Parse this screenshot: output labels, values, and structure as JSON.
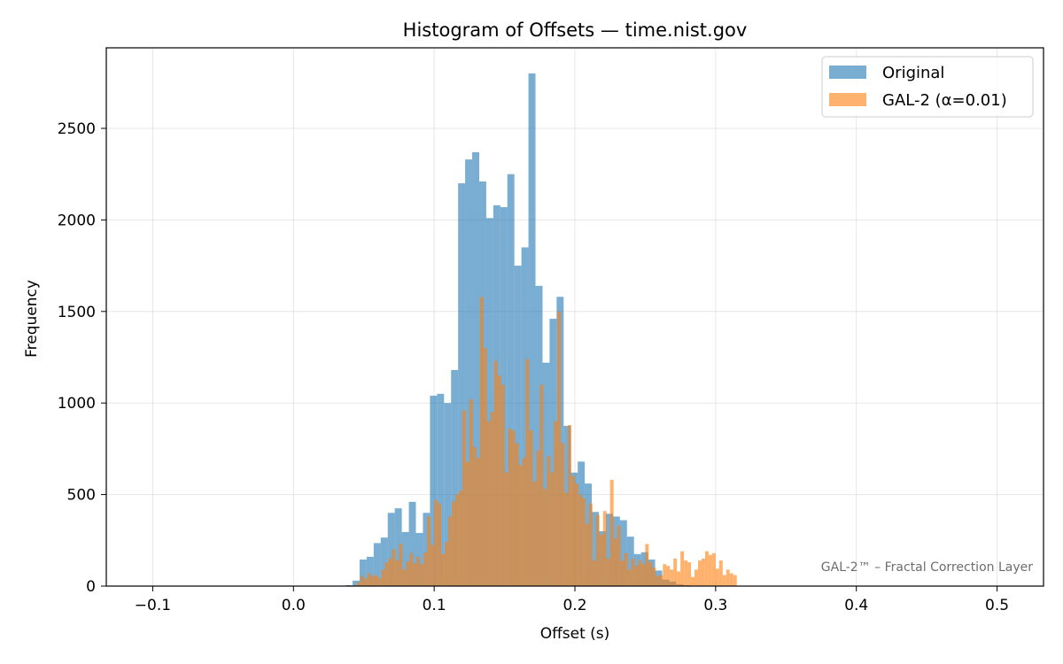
{
  "chart_data": {
    "type": "bar",
    "title": "Histogram of Offsets — time.nist.gov",
    "xlabel": "Offset (s)",
    "ylabel": "Frequency",
    "xlim": [
      -0.133,
      0.533
    ],
    "ylim": [
      0,
      2940
    ],
    "x_ticks": [
      -0.1,
      0.0,
      0.1,
      0.2,
      0.3,
      0.4,
      0.5
    ],
    "x_tick_labels": [
      "−0.1",
      "0.0",
      "0.1",
      "0.2",
      "0.3",
      "0.4",
      "0.5"
    ],
    "y_ticks": [
      0,
      500,
      1000,
      1500,
      2000,
      2500
    ],
    "y_tick_labels": [
      "0",
      "500",
      "1000",
      "1500",
      "2000",
      "2500"
    ],
    "grid": true,
    "legend_position": "top-right",
    "annotation": "GAL-2™ – Fractal Correction Layer",
    "series": [
      {
        "name": "Original",
        "color": "#1f77b4",
        "alpha": 0.6,
        "bin_width": 0.005,
        "bin_start": 0.037,
        "values": [
          5,
          30,
          145,
          160,
          235,
          265,
          400,
          425,
          295,
          460,
          290,
          400,
          1040,
          1050,
          1000,
          1180,
          2200,
          2330,
          2370,
          2210,
          2010,
          2080,
          2070,
          2250,
          1750,
          1850,
          2800,
          1640,
          1220,
          1460,
          1580,
          875,
          620,
          680,
          560,
          405,
          300,
          395,
          380,
          360,
          270,
          175,
          185,
          145,
          85,
          35,
          25,
          10,
          5
        ]
      },
      {
        "name": "GAL-2 (α=0.01)",
        "color": "#ff7f0e",
        "alpha": 0.6,
        "bin_width": 0.0025,
        "bin_start": 0.045,
        "values": [
          20,
          55,
          40,
          70,
          55,
          60,
          45,
          90,
          130,
          150,
          200,
          140,
          230,
          90,
          135,
          180,
          125,
          160,
          120,
          185,
          380,
          225,
          470,
          450,
          175,
          240,
          380,
          460,
          500,
          520,
          960,
          680,
          1020,
          760,
          700,
          1580,
          1300,
          900,
          950,
          1230,
          1150,
          1100,
          620,
          860,
          850,
          780,
          660,
          700,
          1240,
          850,
          570,
          740,
          1100,
          530,
          710,
          620,
          900,
          1500,
          780,
          510,
          880,
          600,
          560,
          500,
          480,
          340,
          450,
          140,
          390,
          280,
          410,
          150,
          580,
          260,
          330,
          140,
          180,
          90,
          150,
          110,
          140,
          120,
          230,
          130,
          100,
          55,
          60,
          120,
          110,
          90,
          150,
          80,
          190,
          140,
          130,
          50,
          90,
          140,
          150,
          190,
          170,
          180,
          95,
          140,
          60,
          90,
          70,
          60
        ]
      }
    ]
  }
}
